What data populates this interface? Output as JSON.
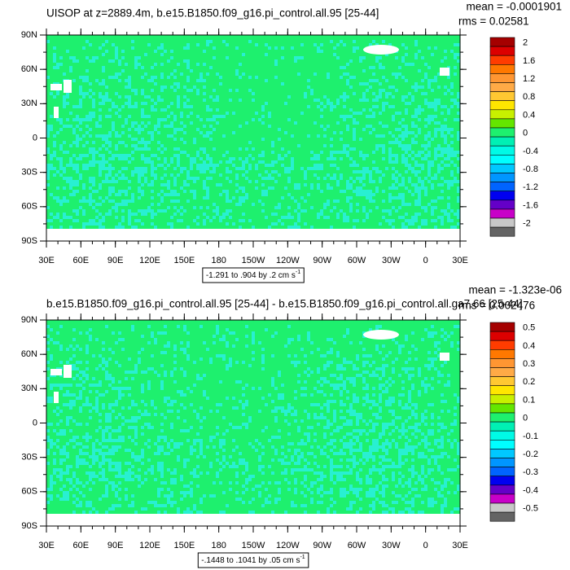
{
  "panels": [
    {
      "title": "UISOP at z=2889.4m, b.e15.B1850.f09_g16.pi_control.all.95 [25-44]",
      "mean": "mean = -0.0001901",
      "rms": "rms = 0.02581",
      "y_labels": [
        "90N",
        "60N",
        "30N",
        "0",
        "30S",
        "60S",
        "90S"
      ],
      "x_labels": [
        "30E",
        "60E",
        "90E",
        "120E",
        "150E",
        "180",
        "150W",
        "120W",
        "90W",
        "60W",
        "30W",
        "0",
        "30E"
      ],
      "contour_info": {
        "text": "-1.291 to .904 by .2 cm s",
        "superscript": "-1"
      },
      "colorbar": {
        "labels": [
          "2",
          "1.6",
          "1.2",
          "0.8",
          "0.4",
          "0",
          "-0.4",
          "-0.8",
          "-1.2",
          "-1.6",
          "-2"
        ]
      }
    },
    {
      "title": "b.e15.B1850.f09_g16.pi_control.all.95 [25-44] - b.e15.B1850.f09_g16.pi_control.all.ga7.66 [25-44]",
      "mean": "mean = -1.323e-06",
      "rms": "rms = 0.002476",
      "y_labels": [
        "90N",
        "60N",
        "30N",
        "0",
        "30S",
        "60S",
        "90S"
      ],
      "x_labels": [
        "30E",
        "60E",
        "90E",
        "120E",
        "150E",
        "180",
        "150W",
        "120W",
        "90W",
        "60W",
        "30W",
        "0",
        "30E"
      ],
      "contour_info": {
        "text": "-.1448 to .1041 by .05 cm s",
        "superscript": "-1"
      },
      "colorbar": {
        "labels": [
          "0.5",
          "0.4",
          "0.3",
          "0.2",
          "0.1",
          "0",
          "-0.1",
          "-0.2",
          "-0.3",
          "-0.4",
          "-0.5"
        ]
      }
    }
  ],
  "colorbar_colors": [
    "#a50000",
    "#dc0000",
    "#ff3c00",
    "#ff7800",
    "#ff9632",
    "#ffaa46",
    "#ffc832",
    "#ffe600",
    "#c8f000",
    "#64e600",
    "#1ef06e",
    "#00f0b4",
    "#00fae6",
    "#00ffff",
    "#00c8ff",
    "#0096ff",
    "#0064ff",
    "#0000f0",
    "#6400c8",
    "#c800c8",
    "#c8c8c8",
    "#646464"
  ]
}
